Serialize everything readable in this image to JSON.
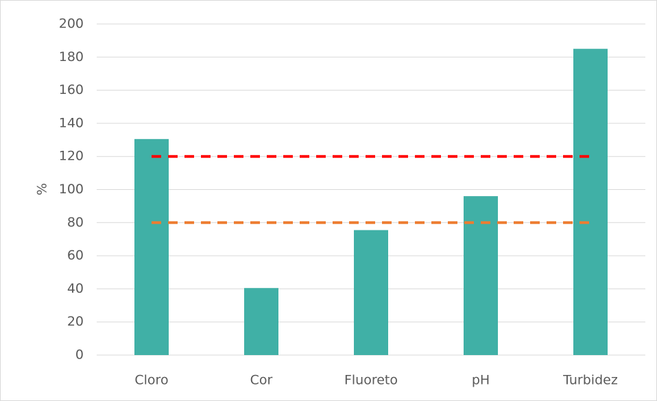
{
  "chart_data": {
    "type": "bar",
    "y_label": "%",
    "categories": [
      "Cloro",
      "Cor",
      "Fluoreto",
      "pH",
      "Turbidez"
    ],
    "series": [
      {
        "type": "bar",
        "color": "#40b0a6",
        "values": [
          130.5,
          40.5,
          75.5,
          96,
          185
        ]
      },
      {
        "type": "line",
        "color": "#ff0000",
        "values": [
          120,
          120,
          120,
          120,
          120
        ]
      },
      {
        "type": "line",
        "color": "#ed7d31",
        "values": [
          80,
          80,
          80,
          80,
          80
        ]
      }
    ],
    "ylim": [
      0,
      200
    ],
    "yticks": [
      0,
      20,
      40,
      60,
      80,
      100,
      120,
      140,
      160,
      180,
      200
    ],
    "grid": true
  }
}
